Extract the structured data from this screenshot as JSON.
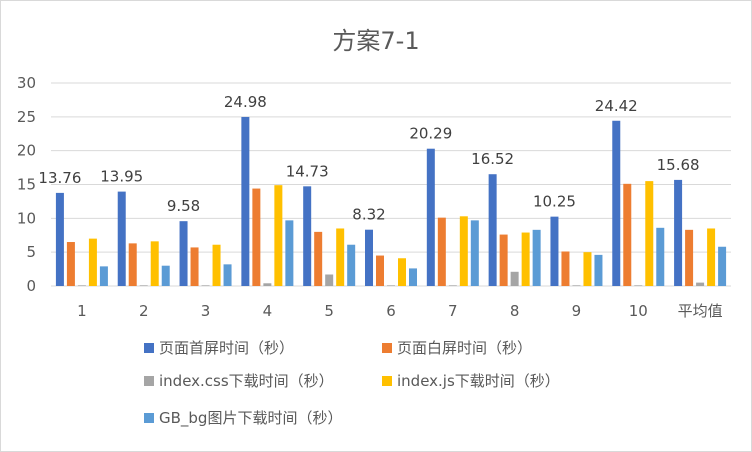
{
  "chart_data": {
    "type": "bar",
    "title": "方案7-1",
    "xlabel": "",
    "ylabel": "",
    "ylim": [
      0,
      30
    ],
    "yticks": [
      0,
      5,
      10,
      15,
      20,
      25,
      30
    ],
    "grid": true,
    "legend_position": "bottom",
    "categories": [
      "1",
      "2",
      "3",
      "4",
      "5",
      "6",
      "7",
      "8",
      "9",
      "10",
      "平均值"
    ],
    "series": [
      {
        "name": "页面首屏时间（秒）",
        "color": "#4472c4",
        "values": [
          13.76,
          13.95,
          9.58,
          24.98,
          14.73,
          8.32,
          20.29,
          16.52,
          10.25,
          24.42,
          15.68
        ],
        "data_labels": [
          "13.76",
          "13.95",
          "9.58",
          "24.98",
          "14.73",
          "8.32",
          "20.29",
          "16.52",
          "10.25",
          "24.42",
          "15.68"
        ]
      },
      {
        "name": "页面白屏时间（秒）",
        "color": "#ed7d31",
        "values": [
          6.5,
          6.3,
          5.7,
          14.4,
          8.0,
          4.5,
          10.1,
          7.6,
          5.1,
          15.1,
          8.3
        ]
      },
      {
        "name": "index.css下载时间（秒）",
        "color": "#a5a5a5",
        "values": [
          0.1,
          0.1,
          0.1,
          0.4,
          1.7,
          0.1,
          0.1,
          2.1,
          0.1,
          0.1,
          0.5
        ]
      },
      {
        "name": "index.js下载时间（秒）",
        "color": "#ffc000",
        "values": [
          7.0,
          6.6,
          6.1,
          14.9,
          8.5,
          4.1,
          10.3,
          7.9,
          5.0,
          15.5,
          8.5
        ]
      },
      {
        "name": "GB_bg图片下载时间（秒）",
        "color": "#5b9bd5",
        "values": [
          2.9,
          3.0,
          3.2,
          9.7,
          6.1,
          2.6,
          9.7,
          8.3,
          4.6,
          8.6,
          5.8
        ]
      }
    ]
  }
}
